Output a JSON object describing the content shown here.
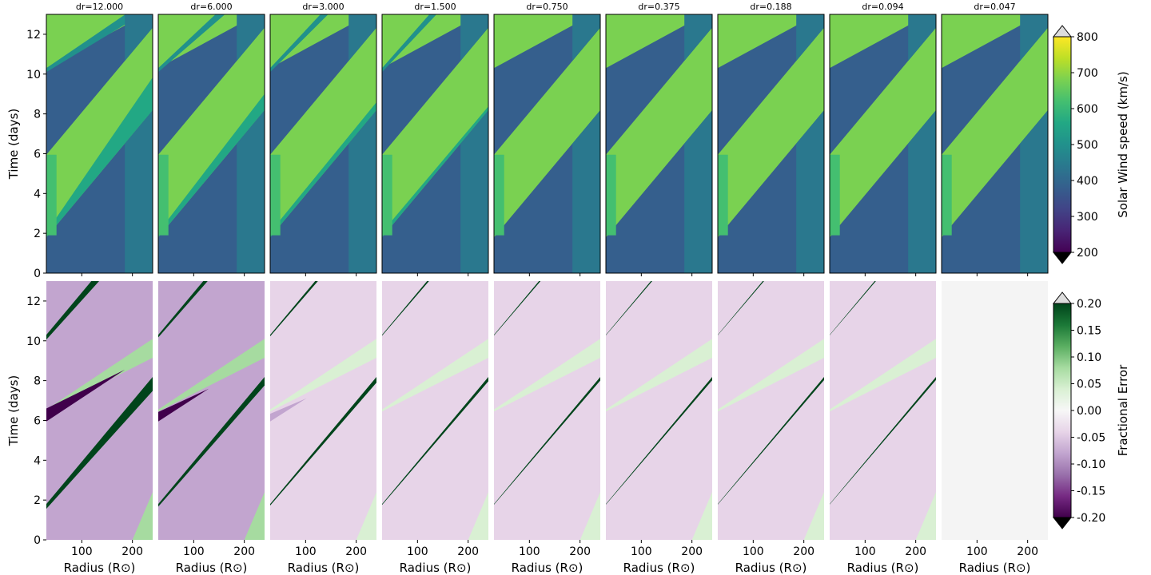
{
  "chart_data": {
    "type": "heatmap",
    "panel_titles": [
      "dr=12.000",
      "dr=6.000",
      "dr=3.000",
      "dr=1.500",
      "dr=0.750",
      "dr=0.375",
      "dr=0.188",
      "dr=0.094",
      "dr=0.047"
    ],
    "dr_values": [
      12.0,
      6.0,
      3.0,
      1.5,
      0.75,
      0.375,
      0.188,
      0.094,
      0.047
    ],
    "x_axis": {
      "label": "Radius (R⊙)",
      "range": [
        30,
        240
      ],
      "ticks": [
        100,
        200
      ]
    },
    "y_axis": {
      "label": "Time (days)",
      "range": [
        0,
        13
      ],
      "ticks": [
        0,
        2,
        4,
        6,
        8,
        10,
        12
      ]
    },
    "top_row": {
      "quantity": "solar wind speed",
      "colorbar": {
        "label": "Solar Wind speed (km/s)",
        "range": [
          200,
          800
        ],
        "ticks": [
          200,
          300,
          400,
          500,
          600,
          700,
          800
        ],
        "colormap": "viridis",
        "extend": "both"
      },
      "slow_wind_kms": 400,
      "fast_wind_kms": 650
    },
    "bottom_row": {
      "quantity": "fractional error",
      "colorbar": {
        "label": "Fractional Error",
        "range": [
          -0.2,
          0.2
        ],
        "ticks": [
          "0.20",
          "0.15",
          "0.10",
          "0.05",
          "0.00",
          "-0.05",
          "-0.10",
          "-0.15",
          "-0.20"
        ],
        "colormap": "PRGn",
        "extend": "both"
      },
      "background_error": [
        -0.1,
        -0.1,
        -0.025,
        -0.03,
        -0.03,
        -0.03,
        -0.025,
        -0.01,
        0.0
      ],
      "band_error": 0.2
    },
    "colors": {
      "viridis": [
        "#440154",
        "#482475",
        "#414487",
        "#355f8d",
        "#2a788e",
        "#21918c",
        "#22a884",
        "#44bf70",
        "#7ad151",
        "#bddf26",
        "#fde725"
      ],
      "prgn": [
        "#40004b",
        "#762a83",
        "#9970ab",
        "#c2a5cf",
        "#e7d4e8",
        "#f7f7f7",
        "#d9f0d3",
        "#a6dba0",
        "#5aae61",
        "#1b7837",
        "#00441b"
      ]
    }
  }
}
